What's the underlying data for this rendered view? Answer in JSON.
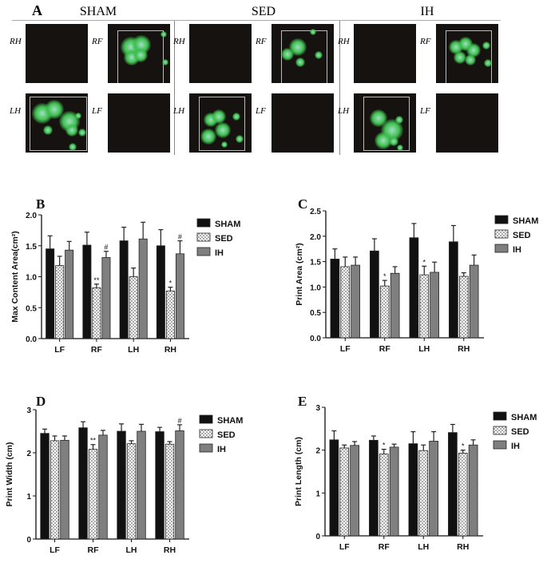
{
  "panel_a": {
    "letter": "A",
    "columns": [
      {
        "title": "SHAM",
        "labels": [
          "RH",
          "RF",
          "LH",
          "LF"
        ]
      },
      {
        "title": "SED",
        "labels": [
          "RH",
          "RF",
          "LH",
          "LF"
        ]
      },
      {
        "title": "IH",
        "labels": [
          "RH",
          "RF",
          "LH",
          "LF"
        ]
      }
    ]
  },
  "legend_colors": {
    "SHAM": "#111111",
    "SED": "checkered",
    "IH": "#7f7f7f"
  },
  "chart_data": [
    {
      "letter": "B",
      "type": "bar",
      "ylabel": "Max Content Area(cm²)",
      "ylim": [
        0,
        2.0
      ],
      "yticks": [
        "0.0",
        "0.5",
        "1.0",
        "1.5",
        "2.0"
      ],
      "ytick_values": [
        0,
        0.5,
        1.0,
        1.5,
        2.0
      ],
      "categories": [
        "LF",
        "RF",
        "LH",
        "RH"
      ],
      "legend": "right",
      "series": [
        {
          "name": "SHAM",
          "values": [
            1.45,
            1.51,
            1.58,
            1.5
          ],
          "err": [
            0.21,
            0.21,
            0.22,
            0.26
          ]
        },
        {
          "name": "SED",
          "values": [
            1.18,
            0.82,
            1.0,
            0.77
          ],
          "err": [
            0.15,
            0.06,
            0.14,
            0.06
          ]
        },
        {
          "name": "IH",
          "values": [
            1.43,
            1.31,
            1.61,
            1.37
          ],
          "err": [
            0.14,
            0.1,
            0.27,
            0.21
          ]
        }
      ],
      "annotations": [
        {
          "category": "RF",
          "series": "SED",
          "text": "**"
        },
        {
          "category": "RF",
          "series": "IH",
          "text": "#"
        },
        {
          "category": "RH",
          "series": "SED",
          "text": "*"
        },
        {
          "category": "RH",
          "series": "IH",
          "text": "#"
        }
      ]
    },
    {
      "letter": "C",
      "type": "bar",
      "ylabel": "Print Area (cm²)",
      "ylim": [
        0,
        2.5
      ],
      "yticks": [
        "0.0",
        "0.5",
        "1.0",
        "1.5",
        "2.0",
        "2.5"
      ],
      "ytick_values": [
        0,
        0.5,
        1.0,
        1.5,
        2.0,
        2.5
      ],
      "categories": [
        "LF",
        "RF",
        "LH",
        "RH"
      ],
      "legend": "right",
      "series": [
        {
          "name": "SHAM",
          "values": [
            1.55,
            1.71,
            1.97,
            1.89
          ],
          "err": [
            0.2,
            0.24,
            0.28,
            0.32
          ]
        },
        {
          "name": "SED",
          "values": [
            1.4,
            1.02,
            1.24,
            1.21
          ],
          "err": [
            0.19,
            0.11,
            0.17,
            0.07
          ]
        },
        {
          "name": "IH",
          "values": [
            1.43,
            1.27,
            1.29,
            1.43
          ],
          "err": [
            0.16,
            0.13,
            0.2,
            0.2
          ]
        }
      ],
      "annotations": [
        {
          "category": "RF",
          "series": "SED",
          "text": "*"
        },
        {
          "category": "LH",
          "series": "SED",
          "text": "*"
        }
      ]
    },
    {
      "letter": "D",
      "type": "bar",
      "ylabel": "Print Width (cm)",
      "ylim": [
        0,
        3
      ],
      "yticks": [
        "0",
        "1",
        "2",
        "3"
      ],
      "ytick_values": [
        0,
        1,
        2,
        3
      ],
      "categories": [
        "LF",
        "RF",
        "LH",
        "RH"
      ],
      "legend": "right",
      "series": [
        {
          "name": "SHAM",
          "values": [
            2.45,
            2.58,
            2.5,
            2.49
          ],
          "err": [
            0.1,
            0.14,
            0.17,
            0.1
          ]
        },
        {
          "name": "SED",
          "values": [
            2.28,
            2.08,
            2.21,
            2.2
          ],
          "err": [
            0.11,
            0.11,
            0.07,
            0.06
          ]
        },
        {
          "name": "IH",
          "values": [
            2.29,
            2.41,
            2.5,
            2.51
          ],
          "err": [
            0.1,
            0.11,
            0.16,
            0.14
          ]
        }
      ],
      "annotations": [
        {
          "category": "RF",
          "series": "SED",
          "text": "**"
        },
        {
          "category": "RH",
          "series": "IH",
          "text": "#"
        }
      ]
    },
    {
      "letter": "E",
      "type": "bar",
      "ylabel": "Print Length (cm)",
      "ylim": [
        0,
        3
      ],
      "yticks": [
        "0",
        "1",
        "2",
        "3"
      ],
      "ytick_values": [
        0,
        1,
        2,
        3
      ],
      "categories": [
        "LF",
        "RF",
        "LH",
        "RH"
      ],
      "legend": "right",
      "series": [
        {
          "name": "SHAM",
          "values": [
            2.24,
            2.23,
            2.15,
            2.41
          ],
          "err": [
            0.21,
            0.1,
            0.28,
            0.19
          ]
        },
        {
          "name": "SED",
          "values": [
            2.05,
            1.91,
            1.99,
            1.93
          ],
          "err": [
            0.07,
            0.11,
            0.13,
            0.07
          ]
        },
        {
          "name": "IH",
          "values": [
            2.11,
            2.07,
            2.21,
            2.12
          ],
          "err": [
            0.09,
            0.07,
            0.22,
            0.12
          ]
        }
      ],
      "annotations": [
        {
          "category": "RF",
          "series": "SED",
          "text": "*"
        },
        {
          "category": "RH",
          "series": "SED",
          "text": "*"
        }
      ]
    }
  ]
}
